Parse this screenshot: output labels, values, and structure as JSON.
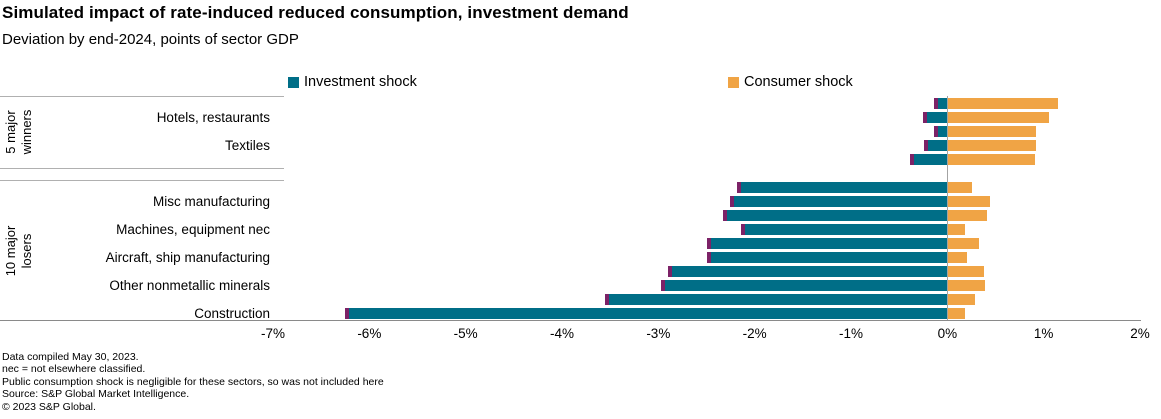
{
  "header": {
    "title": "Simulated impact of rate-induced reduced consumption, investment demand",
    "subtitle": "Deviation by end-2024, points of sector GDP"
  },
  "chart_data": {
    "type": "bar",
    "orientation": "horizontal",
    "title": "Simulated impact of rate-induced reduced consumption, investment demand",
    "subtitle": "Deviation by end-2024, points of sector GDP",
    "legend_position": "top",
    "grid": false,
    "x_axis": {
      "min": -7,
      "max": 2,
      "tick_step": 1,
      "unit": "%",
      "tick_labels": [
        "-7%",
        "-6%",
        "-5%",
        "-4%",
        "-3%",
        "-2%",
        "-1%",
        "0%",
        "1%",
        "2%"
      ]
    },
    "series": [
      {
        "name": "Investment shock",
        "color": "#006E87",
        "cap_color": "#7C2267"
      },
      {
        "name": "Consumer shock",
        "color": "#F0A445"
      }
    ],
    "groups": [
      {
        "name": "5 major winners",
        "name_lines": [
          "5 major",
          "winners"
        ],
        "rows": [
          {
            "label": "",
            "investment": -0.14,
            "consumer": 1.15
          },
          {
            "label": "Hotels, restaurants",
            "investment": -0.25,
            "consumer": 1.06
          },
          {
            "label": "",
            "investment": -0.14,
            "consumer": 0.92
          },
          {
            "label": "Textiles",
            "investment": -0.24,
            "consumer": 0.92
          },
          {
            "label": "",
            "investment": -0.39,
            "consumer": 0.91
          }
        ]
      },
      {
        "name": "10 major losers",
        "name_lines": [
          "10 major",
          "losers"
        ],
        "rows": [
          {
            "label": "",
            "investment": -2.18,
            "consumer": 0.26
          },
          {
            "label": "Misc manufacturing",
            "investment": -2.26,
            "consumer": 0.44
          },
          {
            "label": "",
            "investment": -2.33,
            "consumer": 0.41
          },
          {
            "label": "Machines, equipment nec",
            "investment": -2.14,
            "consumer": 0.18
          },
          {
            "label": "",
            "investment": -2.49,
            "consumer": 0.33
          },
          {
            "label": "Aircraft, ship manufacturing",
            "investment": -2.5,
            "consumer": 0.2
          },
          {
            "label": "",
            "investment": -2.9,
            "consumer": 0.38
          },
          {
            "label": "Other nonmetallic minerals",
            "investment": -2.97,
            "consumer": 0.39
          },
          {
            "label": "",
            "investment": -3.55,
            "consumer": 0.29
          },
          {
            "label": "Construction",
            "investment": -6.25,
            "consumer": 0.18
          }
        ]
      }
    ]
  },
  "footnotes": [
    "Data compiled May 30, 2023.",
    "nec = not elsewhere classified.",
    "Public consumption shock is negligible for these sectors, so was not included here",
    "Source: S&P Global Market Intelligence.",
    "© 2023 S&P Global."
  ]
}
